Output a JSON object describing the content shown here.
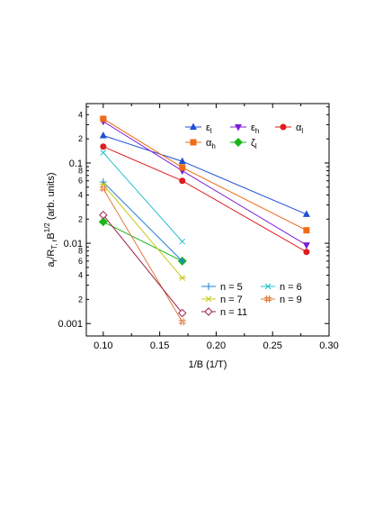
{
  "chart_data": {
    "type": "scatter",
    "title": "",
    "xlabel": "1/B (1/T)",
    "ylabel": "a_r/R_T,r B^1/2 (arb. units)",
    "ylabel_parts": {
      "main": "a",
      "sub1": "r",
      "mid": "/R",
      "sub2": "T, r",
      "tail": "B",
      "sup": "1/2",
      "units": " (arb. units)"
    },
    "xlim": [
      0.085,
      0.3
    ],
    "ylim": [
      0.0007,
      0.55
    ],
    "yscale": "log",
    "grid": false,
    "x_ticks": [
      0.1,
      0.15,
      0.2,
      0.25,
      0.3
    ],
    "x_tick_labels": [
      "0.10",
      "0.15",
      "0.20",
      "0.25",
      "0.30"
    ],
    "y_ticks_labeled": [
      0.001,
      0.01,
      0.1
    ],
    "y_tick_labels": [
      "0.001",
      "0.01",
      "0.1"
    ],
    "y_minor_labels": [
      {
        "value": 0.002,
        "label": "2"
      },
      {
        "value": 0.004,
        "label": "4"
      },
      {
        "value": 0.006,
        "label": "6"
      },
      {
        "value": 0.008,
        "label": "8"
      },
      {
        "value": 0.02,
        "label": "2"
      },
      {
        "value": 0.04,
        "label": "4"
      },
      {
        "value": 0.06,
        "label": "6"
      },
      {
        "value": 0.08,
        "label": "8"
      },
      {
        "value": 0.2,
        "label": "2"
      },
      {
        "value": 0.4,
        "label": "4"
      }
    ],
    "legend_1": {
      "placement": "top-right",
      "columns": 3,
      "entries": [
        "epsilon_l",
        "epsilon_h",
        "alpha_l",
        "alpha_h",
        "zeta_l"
      ]
    },
    "legend_2": {
      "placement": "lower-right",
      "columns": 2,
      "entries": [
        "n5",
        "n6",
        "n7",
        "n9",
        "n11"
      ]
    },
    "series": [
      {
        "key": "epsilon_l",
        "label": "ε",
        "sub": "l",
        "color": "#1f4fd6",
        "marker": "triangle-up",
        "x": [
          0.1,
          0.17,
          0.28
        ],
        "y": [
          0.22,
          0.105,
          0.023
        ]
      },
      {
        "key": "epsilon_h",
        "label": "ε",
        "sub": "h",
        "color": "#7b1fd6",
        "marker": "triangle-down",
        "x": [
          0.1,
          0.17,
          0.28
        ],
        "y": [
          0.33,
          0.08,
          0.0095
        ]
      },
      {
        "key": "alpha_l",
        "label": "α",
        "sub": "l",
        "color": "#e01b1b",
        "marker": "circle",
        "x": [
          0.1,
          0.17,
          0.28
        ],
        "y": [
          0.16,
          0.06,
          0.0078
        ]
      },
      {
        "key": "alpha_h",
        "label": "α",
        "sub": "h",
        "color": "#f06b14",
        "marker": "square",
        "x": [
          0.1,
          0.17,
          0.28
        ],
        "y": [
          0.355,
          0.088,
          0.0145
        ]
      },
      {
        "key": "zeta_l",
        "label": "ζ",
        "sub": "l",
        "color": "#18b818",
        "marker": "diamond",
        "x": [
          0.1,
          0.17
        ],
        "y": [
          0.0185,
          0.006
        ]
      },
      {
        "key": "n5",
        "label": "n = 5",
        "sub": "",
        "color": "#1f7fd6",
        "marker": "plus",
        "x": [
          0.1,
          0.17
        ],
        "y": [
          0.058,
          0.006
        ]
      },
      {
        "key": "n6",
        "label": "n = 6",
        "sub": "",
        "color": "#22c0cc",
        "marker": "x",
        "x": [
          0.1,
          0.17
        ],
        "y": [
          0.135,
          0.0105
        ]
      },
      {
        "key": "n7",
        "label": "n = 7",
        "sub": "",
        "color": "#c8c818",
        "marker": "asterisk",
        "x": [
          0.1,
          0.17
        ],
        "y": [
          0.054,
          0.0037
        ]
      },
      {
        "key": "n9",
        "label": "n = 9",
        "sub": "",
        "color": "#e07a3a",
        "marker": "hash",
        "x": [
          0.1,
          0.17
        ],
        "y": [
          0.048,
          0.00105
        ]
      },
      {
        "key": "n11",
        "label": "n = 11",
        "sub": "",
        "color": "#9a1f4a",
        "marker": "diamond-open",
        "x": [
          0.1,
          0.17
        ],
        "y": [
          0.0225,
          0.00135
        ]
      }
    ]
  }
}
